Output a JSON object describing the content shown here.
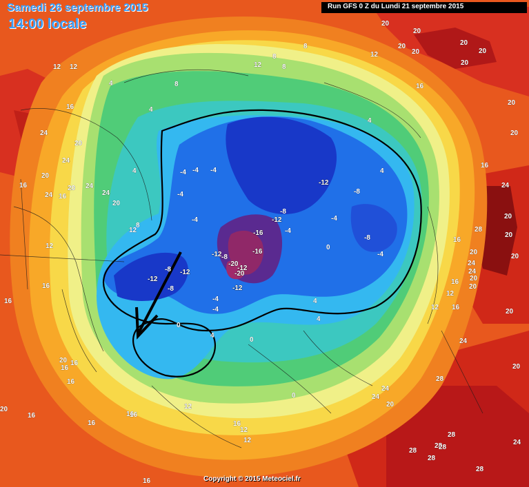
{
  "header": {
    "date": "Samedi 26 septembre 2015",
    "time": "14:00 locale",
    "run": "Run GFS 0 Z du Lundi 21 septembre 2015"
  },
  "footer": {
    "copyright": "Copyright © 2015 Meteociel.fr"
  },
  "colors": {
    "dark_red": "#b01010",
    "red": "#e02818",
    "orange": "#f06818",
    "light_orange": "#f8a020",
    "yellow": "#f8d840",
    "pale_yellow": "#f0f080",
    "light_green": "#a0e060",
    "green": "#40c870",
    "cyan_green": "#38c8c0",
    "cyan": "#30b8f0",
    "blue": "#2070e8",
    "dark_blue": "#1030c0",
    "purple": "#602080",
    "magenta": "#902060"
  },
  "labels": [
    {
      "text": "20"
    },
    {
      "text": "20"
    },
    {
      "text": "20"
    },
    {
      "text": "20"
    },
    {
      "text": "20"
    },
    {
      "text": "20"
    },
    {
      "text": "16"
    },
    {
      "text": "20"
    },
    {
      "text": "20"
    },
    {
      "text": "16"
    },
    {
      "text": "24"
    },
    {
      "text": "24"
    },
    {
      "text": "20"
    },
    {
      "text": "20"
    },
    {
      "text": "24"
    },
    {
      "text": "20"
    },
    {
      "text": "16"
    },
    {
      "text": "24"
    },
    {
      "text": "24"
    },
    {
      "text": "16"
    },
    {
      "text": "20"
    },
    {
      "text": "12"
    },
    {
      "text": "12"
    },
    {
      "text": "8"
    },
    {
      "text": "8"
    },
    {
      "text": "12"
    },
    {
      "text": "8"
    },
    {
      "text": "8"
    },
    {
      "text": "12"
    },
    {
      "text": "4"
    },
    {
      "text": "8"
    },
    {
      "text": "4"
    },
    {
      "text": "4"
    },
    {
      "text": "4"
    },
    {
      "text": "-4"
    },
    {
      "text": "-4"
    },
    {
      "text": "-4"
    },
    {
      "text": "-4"
    },
    {
      "text": "-12"
    },
    {
      "text": "-8"
    },
    {
      "text": "4"
    },
    {
      "text": "-8"
    },
    {
      "text": "-12"
    },
    {
      "text": "-8"
    },
    {
      "text": "-4"
    },
    {
      "text": "-4"
    },
    {
      "text": "-16"
    },
    {
      "text": "-16"
    },
    {
      "text": "-12"
    },
    {
      "text": "-20"
    },
    {
      "text": "-12"
    },
    {
      "text": "-20"
    },
    {
      "text": "-12"
    },
    {
      "text": "-12"
    },
    {
      "text": "-8"
    },
    {
      "text": "-12"
    },
    {
      "text": "-8"
    },
    {
      "text": "-4"
    },
    {
      "text": "-4"
    },
    {
      "text": "-4"
    },
    {
      "text": "-8"
    },
    {
      "text": "-4"
    },
    {
      "text": "0"
    },
    {
      "text": "0"
    },
    {
      "text": "0"
    },
    {
      "text": "4"
    },
    {
      "text": "4"
    },
    {
      "text": "4"
    },
    {
      "text": "0"
    },
    {
      "text": "12"
    },
    {
      "text": "12"
    },
    {
      "text": "12"
    },
    {
      "text": "16"
    },
    {
      "text": "16"
    },
    {
      "text": "16"
    },
    {
      "text": "16"
    },
    {
      "text": "16"
    },
    {
      "text": "16"
    },
    {
      "text": "16"
    },
    {
      "text": "16"
    },
    {
      "text": "12"
    },
    {
      "text": "12"
    },
    {
      "text": "16"
    },
    {
      "text": "20"
    },
    {
      "text": "24"
    },
    {
      "text": "24"
    },
    {
      "text": "28"
    },
    {
      "text": "28"
    },
    {
      "text": "28"
    },
    {
      "text": "28"
    },
    {
      "text": "28"
    },
    {
      "text": "20"
    },
    {
      "text": "20"
    },
    {
      "text": "20"
    },
    {
      "text": "20"
    },
    {
      "text": "24"
    },
    {
      "text": "24"
    },
    {
      "text": "20"
    },
    {
      "text": "20"
    },
    {
      "text": "16"
    },
    {
      "text": "16"
    },
    {
      "text": "24"
    },
    {
      "text": "20"
    },
    {
      "text": "16"
    },
    {
      "text": "20"
    },
    {
      "text": "28"
    },
    {
      "text": "24"
    },
    {
      "text": "24"
    },
    {
      "text": "20"
    },
    {
      "text": "28"
    },
    {
      "text": "28"
    },
    {
      "text": "12"
    },
    {
      "text": "16"
    },
    {
      "text": "12"
    },
    {
      "text": "16"
    },
    {
      "text": "20"
    },
    {
      "text": "16"
    },
    {
      "text": "20"
    }
  ]
}
